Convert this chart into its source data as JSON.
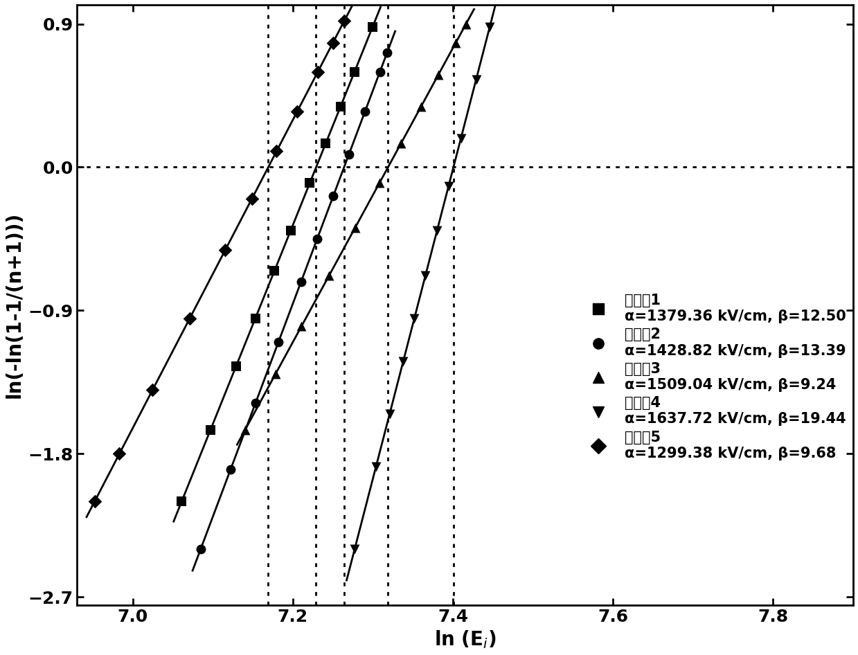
{
  "xlim": [
    6.93,
    7.9
  ],
  "ylim": [
    -2.75,
    1.02
  ],
  "xticks": [
    7.0,
    7.2,
    7.4,
    7.6,
    7.8
  ],
  "yticks": [
    -2.7,
    -1.8,
    -0.9,
    0.0,
    0.9
  ],
  "xlabel": "ln (E$_i$)",
  "ylabel": "ln(-ln(1-1/(n+1)))",
  "series": [
    {
      "label": "实施入1",
      "label2": "α=1379.36 kV/cm, β=12.50",
      "marker": "s",
      "alpha_val": 7.2292,
      "beta_val": 12.5,
      "y_points": [
        -2.1,
        -1.65,
        -1.25,
        -0.95,
        -0.65,
        -0.4,
        -0.1,
        0.15,
        0.38,
        0.6,
        0.88
      ]
    },
    {
      "label": "实施入2",
      "label2": "α=1428.82 kV/cm, β=13.39",
      "marker": "o",
      "alpha_val": 7.2641,
      "beta_val": 13.39,
      "y_points": [
        -2.4,
        -1.9,
        -1.48,
        -1.1,
        -0.72,
        -0.45,
        -0.18,
        0.08,
        0.35,
        0.6,
        0.72
      ]
    },
    {
      "label": "实施入3",
      "label2": "α=1509.04 kV/cm, β=9.24",
      "marker": "^",
      "alpha_val": 7.319,
      "beta_val": 9.24,
      "y_points": [
        -1.65,
        -1.3,
        -1.0,
        -0.68,
        -0.38,
        -0.1,
        0.15,
        0.38,
        0.58,
        0.78,
        0.9
      ]
    },
    {
      "label": "实施入4",
      "label2": "α=1637.72 kV/cm, β=19.44",
      "marker": "v",
      "alpha_val": 7.4007,
      "beta_val": 19.44,
      "y_points": [
        -2.4,
        -1.88,
        -1.55,
        -1.22,
        -0.95,
        -0.68,
        -0.4,
        -0.12,
        0.18,
        0.55,
        0.88
      ]
    },
    {
      "label": "实施入5",
      "label2": "α=1299.38 kV/cm, β=9.68",
      "marker": "D",
      "alpha_val": 7.1694,
      "beta_val": 9.68,
      "y_points": [
        -2.1,
        -1.8,
        -1.4,
        -0.95,
        -0.52,
        -0.2,
        0.1,
        0.35,
        0.6,
        0.78,
        0.92
      ]
    }
  ],
  "vlines": [
    7.169,
    7.229,
    7.264,
    7.319,
    7.401
  ],
  "hline": 0.0,
  "bg_color": "#ffffff",
  "line_color": "#000000",
  "marker_color": "#000000",
  "fontsize_label": 20,
  "fontsize_tick": 18,
  "fontsize_legend": 15
}
